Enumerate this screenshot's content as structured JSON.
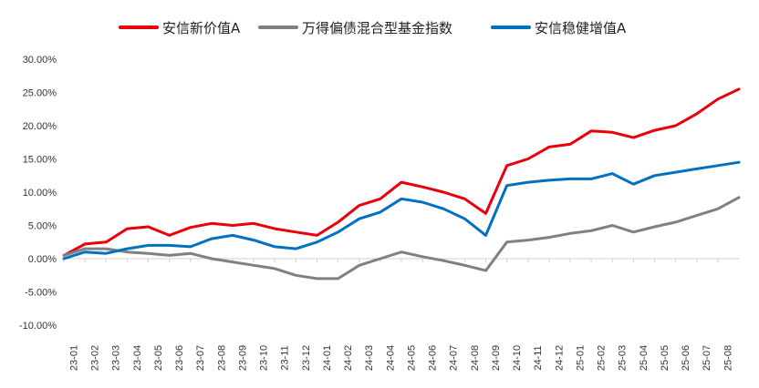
{
  "chart_data": {
    "type": "line",
    "title": "",
    "xlabel": "",
    "ylabel": "",
    "ylim": [
      -0.1,
      0.3
    ],
    "y_tick_values": [
      -0.1,
      -0.05,
      0.0,
      0.05,
      0.1,
      0.15,
      0.2,
      0.25,
      0.3
    ],
    "y_tick_labels": [
      "-10.00%",
      "-5.00%",
      "0.00%",
      "5.00%",
      "10.00%",
      "15.00%",
      "20.00%",
      "25.00%",
      "30.00%"
    ],
    "x_tick_labels": [
      "23-01",
      "23-02",
      "23-03",
      "23-04",
      "23-05",
      "23-06",
      "23-07",
      "23-08",
      "23-09",
      "23-10",
      "23-11",
      "23-12",
      "24-01",
      "24-02",
      "24-03",
      "24-04",
      "24-05",
      "24-06",
      "24-07",
      "24-08",
      "24-09",
      "24-10",
      "24-11",
      "24-12",
      "25-01",
      "25-02",
      "25-03",
      "25-04",
      "25-05",
      "25-06",
      "25-07",
      "25-08"
    ],
    "x_range": [
      "23-01",
      "25-09"
    ],
    "grid": false,
    "legend_position": "top",
    "series": [
      {
        "name": "安信新价值A",
        "color": "#e8000b",
        "x": [
          "23-01",
          "23-02",
          "23-03",
          "23-04",
          "23-05",
          "23-06",
          "23-07",
          "23-08",
          "23-09",
          "23-10",
          "23-11",
          "23-12",
          "24-01",
          "24-02",
          "24-03",
          "24-04",
          "24-05",
          "24-06",
          "24-07",
          "24-08",
          "24-09",
          "24-10",
          "24-11",
          "24-12",
          "25-01",
          "25-02",
          "25-03",
          "25-04",
          "25-05",
          "25-06",
          "25-07",
          "25-08",
          "25-09"
        ],
        "values": [
          0.005,
          0.022,
          0.025,
          0.045,
          0.048,
          0.035,
          0.047,
          0.053,
          0.05,
          0.053,
          0.045,
          0.04,
          0.035,
          0.055,
          0.08,
          0.09,
          0.115,
          0.108,
          0.1,
          0.09,
          0.068,
          0.14,
          0.15,
          0.168,
          0.172,
          0.192,
          0.19,
          0.182,
          0.193,
          0.2,
          0.218,
          0.24,
          0.255
        ]
      },
      {
        "name": "万得偏债混合型基金指数",
        "color": "#808080",
        "x": [
          "23-01",
          "23-02",
          "23-03",
          "23-04",
          "23-05",
          "23-06",
          "23-07",
          "23-08",
          "23-09",
          "23-10",
          "23-11",
          "23-12",
          "24-01",
          "24-02",
          "24-03",
          "24-04",
          "24-05",
          "24-06",
          "24-07",
          "24-08",
          "24-09",
          "24-10",
          "24-11",
          "24-12",
          "25-01",
          "25-02",
          "25-03",
          "25-04",
          "25-05",
          "25-06",
          "25-07",
          "25-08",
          "25-09"
        ],
        "values": [
          0.005,
          0.015,
          0.015,
          0.01,
          0.008,
          0.005,
          0.008,
          0.0,
          -0.005,
          -0.01,
          -0.015,
          -0.025,
          -0.03,
          -0.03,
          -0.01,
          0.0,
          0.01,
          0.003,
          -0.003,
          -0.01,
          -0.018,
          0.025,
          0.028,
          0.032,
          0.038,
          0.042,
          0.05,
          0.04,
          0.048,
          0.055,
          0.065,
          0.075,
          0.092
        ]
      },
      {
        "name": "安信稳健增值A",
        "color": "#0070c0",
        "x": [
          "23-01",
          "23-02",
          "23-03",
          "23-04",
          "23-05",
          "23-06",
          "23-07",
          "23-08",
          "23-09",
          "23-10",
          "23-11",
          "23-12",
          "24-01",
          "24-02",
          "24-03",
          "24-04",
          "24-05",
          "24-06",
          "24-07",
          "24-08",
          "24-09",
          "24-10",
          "24-11",
          "24-12",
          "25-01",
          "25-02",
          "25-03",
          "25-04",
          "25-05",
          "25-06",
          "25-07",
          "25-08",
          "25-09"
        ],
        "values": [
          0.0,
          0.01,
          0.008,
          0.015,
          0.02,
          0.02,
          0.018,
          0.03,
          0.035,
          0.028,
          0.018,
          0.015,
          0.025,
          0.04,
          0.06,
          0.07,
          0.09,
          0.085,
          0.075,
          0.06,
          0.035,
          0.11,
          0.115,
          0.118,
          0.12,
          0.12,
          0.128,
          0.112,
          0.125,
          0.13,
          0.135,
          0.14,
          0.145
        ]
      }
    ]
  }
}
